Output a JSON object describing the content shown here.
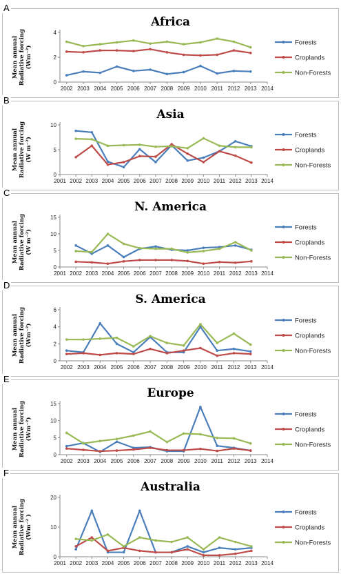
{
  "colors": {
    "forests": "#4a7ebb",
    "croplands": "#be4b48",
    "non_forests": "#98b954",
    "axis": "#8a8a8a"
  },
  "chart_data": [
    {
      "type": "line",
      "letter": "A",
      "title": "Africa",
      "ylabel_lines": [
        "Mean annual",
        "Radiative forcing",
        "(Wm⁻²)"
      ],
      "x": [
        2002,
        2003,
        2004,
        2005,
        2006,
        2007,
        2008,
        2009,
        2010,
        2011,
        2012,
        2013
      ],
      "x_ticks": [
        2002,
        2003,
        2004,
        2005,
        2006,
        2007,
        2008,
        2009,
        2010,
        2011,
        2012,
        2013,
        2014
      ],
      "xlim": [
        2001.6,
        2014
      ],
      "ylim": [
        0,
        4
      ],
      "y_ticks": [
        0,
        2,
        4
      ],
      "y_tick_labels": [
        "0",
        "2",
        "4"
      ],
      "legend_position": "right",
      "series": [
        {
          "name": "Forests",
          "values": [
            0.55,
            0.85,
            0.75,
            1.25,
            0.9,
            1.0,
            0.65,
            0.8,
            1.3,
            0.7,
            0.9,
            0.85
          ]
        },
        {
          "name": "Croplands",
          "values": [
            2.45,
            2.4,
            2.55,
            2.55,
            2.5,
            2.65,
            2.4,
            2.2,
            2.15,
            2.2,
            2.55,
            2.35
          ]
        },
        {
          "name": "Non-Forests",
          "values": [
            3.25,
            2.9,
            3.05,
            3.2,
            3.35,
            3.1,
            3.25,
            3.05,
            3.2,
            3.5,
            3.25,
            2.8
          ]
        }
      ]
    },
    {
      "type": "line",
      "letter": "B",
      "title": "Asia",
      "ylabel_lines": [
        "Mean annual",
        "Radiative forcing",
        "(W m⁻²)"
      ],
      "x": [
        2002,
        2003,
        2004,
        2005,
        2006,
        2007,
        2008,
        2009,
        2010,
        2011,
        2012,
        2013
      ],
      "x_ticks": [
        2001,
        2002,
        2003,
        2004,
        2005,
        2006,
        2007,
        2008,
        2009,
        2010,
        2011,
        2012,
        2013,
        2014
      ],
      "xlim": [
        2001,
        2014
      ],
      "ylim": [
        0,
        10
      ],
      "y_ticks": [
        0,
        5,
        10
      ],
      "y_tick_labels": [
        "0",
        "5",
        "10"
      ],
      "legend_position": "right",
      "series": [
        {
          "name": "Forests",
          "values": [
            8.8,
            8.5,
            2.6,
            1.5,
            5.1,
            2.5,
            5.9,
            2.8,
            3.4,
            4.7,
            6.7,
            5.7
          ]
        },
        {
          "name": "Croplands",
          "values": [
            3.5,
            5.8,
            2.0,
            2.5,
            3.7,
            3.6,
            6.1,
            4.2,
            2.5,
            4.7,
            3.8,
            2.4
          ]
        },
        {
          "name": "Non-Forests",
          "values": [
            7.2,
            7.1,
            5.8,
            5.9,
            6.0,
            5.6,
            5.7,
            5.3,
            7.3,
            5.8,
            5.5,
            5.5
          ]
        }
      ]
    },
    {
      "type": "line",
      "letter": "C",
      "title": "N. America",
      "ylabel_lines": [
        "Mean annual",
        "Radiative forcing",
        "(W m⁻²)"
      ],
      "x": [
        2002,
        2003,
        2004,
        2005,
        2006,
        2007,
        2008,
        2009,
        2010,
        2011,
        2012,
        2013
      ],
      "x_ticks": [
        2001,
        2002,
        2003,
        2004,
        2005,
        2006,
        2007,
        2008,
        2009,
        2010,
        2011,
        2012,
        2013,
        2014
      ],
      "xlim": [
        2001,
        2014
      ],
      "ylim": [
        0,
        15
      ],
      "y_ticks": [
        0,
        5,
        10,
        15
      ],
      "y_tick_labels": [
        "0",
        "5",
        "10",
        "15"
      ],
      "legend_position": "right",
      "series": [
        {
          "name": "Forests",
          "values": [
            6.5,
            4.0,
            6.5,
            3.0,
            5.5,
            6.2,
            5.2,
            5.0,
            5.8,
            6.0,
            6.5,
            5.2
          ]
        },
        {
          "name": "Croplands",
          "values": [
            1.6,
            1.4,
            1.0,
            1.7,
            2.1,
            2.1,
            2.1,
            1.8,
            1.0,
            1.5,
            1.3,
            1.7
          ]
        },
        {
          "name": "Non-Forests",
          "values": [
            4.8,
            4.5,
            10.0,
            7.0,
            5.7,
            5.5,
            5.5,
            4.4,
            4.8,
            5.5,
            7.5,
            5.0
          ]
        }
      ]
    },
    {
      "type": "line",
      "letter": "D",
      "title": "S. America",
      "ylabel_lines": [
        "Mean annual",
        "Radiative forcing",
        "(Wm⁻²)"
      ],
      "x": [
        2002,
        2003,
        2004,
        2005,
        2006,
        2007,
        2008,
        2009,
        2010,
        2011,
        2012,
        2013
      ],
      "x_ticks": [
        2002,
        2003,
        2004,
        2005,
        2006,
        2007,
        2008,
        2009,
        2010,
        2011,
        2012,
        2013,
        2014
      ],
      "xlim": [
        2001.6,
        2014
      ],
      "ylim": [
        0,
        6
      ],
      "y_ticks": [
        0,
        2,
        4,
        6
      ],
      "y_tick_labels": [
        "0",
        "2",
        "4",
        "6"
      ],
      "legend_position": "right",
      "series": [
        {
          "name": "Forests",
          "values": [
            1.2,
            1.0,
            4.4,
            2.0,
            1.0,
            2.8,
            1.0,
            1.0,
            4.0,
            1.2,
            1.4,
            1.1
          ]
        },
        {
          "name": "Croplands",
          "values": [
            0.8,
            0.9,
            0.7,
            0.9,
            0.8,
            1.4,
            0.9,
            1.2,
            1.5,
            0.6,
            0.9,
            0.8
          ]
        },
        {
          "name": "Non-Forests",
          "values": [
            2.5,
            2.5,
            2.6,
            2.7,
            1.7,
            2.9,
            2.1,
            1.8,
            4.3,
            2.1,
            3.2,
            1.9
          ]
        }
      ]
    },
    {
      "type": "line",
      "letter": "E",
      "title": "Europe",
      "ylabel_lines": [
        "Mean annual",
        "Radiative forcing",
        "(Wm⁻²)"
      ],
      "x": [
        2002,
        2003,
        2004,
        2005,
        2006,
        2007,
        2008,
        2009,
        2010,
        2011,
        2012,
        2013
      ],
      "x_ticks": [
        2002,
        2003,
        2004,
        2005,
        2006,
        2007,
        2008,
        2009,
        2010,
        2011,
        2012,
        2013,
        2014
      ],
      "xlim": [
        2001.6,
        2014
      ],
      "ylim": [
        0,
        15
      ],
      "y_ticks": [
        0,
        5,
        10,
        15
      ],
      "y_tick_labels": [
        "0",
        "5",
        "10",
        "15"
      ],
      "legend_position": "right",
      "series": [
        {
          "name": "Forests",
          "values": [
            2.5,
            3.4,
            0.8,
            3.8,
            2.0,
            2.2,
            1.0,
            1.0,
            14.0,
            2.6,
            2.0,
            1.2
          ]
        },
        {
          "name": "Croplands",
          "values": [
            1.8,
            1.4,
            1.0,
            1.2,
            1.5,
            2.0,
            1.3,
            1.3,
            1.7,
            1.1,
            1.8,
            1.2
          ]
        },
        {
          "name": "Non-Forests",
          "values": [
            6.4,
            3.3,
            4.0,
            4.6,
            5.6,
            6.8,
            3.7,
            6.2,
            6.0,
            4.9,
            4.8,
            3.3
          ]
        }
      ]
    },
    {
      "type": "line",
      "letter": "F",
      "title": "Australia",
      "ylabel_lines": [
        "Mean annual",
        "Radiative forcing",
        "(Wm⁻² )"
      ],
      "x": [
        2002,
        2003,
        2004,
        2005,
        2006,
        2007,
        2008,
        2009,
        2010,
        2011,
        2012,
        2013
      ],
      "x_ticks": [
        2001,
        2002,
        2003,
        2004,
        2005,
        2006,
        2007,
        2008,
        2009,
        2010,
        2011,
        2012,
        2013,
        2014
      ],
      "xlim": [
        2001,
        2014
      ],
      "ylim": [
        0,
        20
      ],
      "y_ticks": [
        0,
        10,
        20
      ],
      "y_tick_labels": [
        "0",
        "10",
        "20"
      ],
      "legend_position": "right",
      "series": [
        {
          "name": "Forests",
          "values": [
            2.5,
            15.5,
            1.5,
            1.5,
            15.5,
            1.5,
            1.5,
            3.5,
            1.5,
            3.0,
            2.5,
            3.0
          ]
        },
        {
          "name": "Croplands",
          "values": [
            3.5,
            6.5,
            2.0,
            3.0,
            2.0,
            1.5,
            1.5,
            2.5,
            0.5,
            0.5,
            1.0,
            2.0
          ]
        },
        {
          "name": "Non-Forests",
          "values": [
            6.0,
            5.5,
            7.5,
            3.5,
            6.5,
            5.5,
            5.0,
            6.5,
            2.5,
            6.5,
            5.0,
            3.5
          ]
        }
      ]
    }
  ]
}
